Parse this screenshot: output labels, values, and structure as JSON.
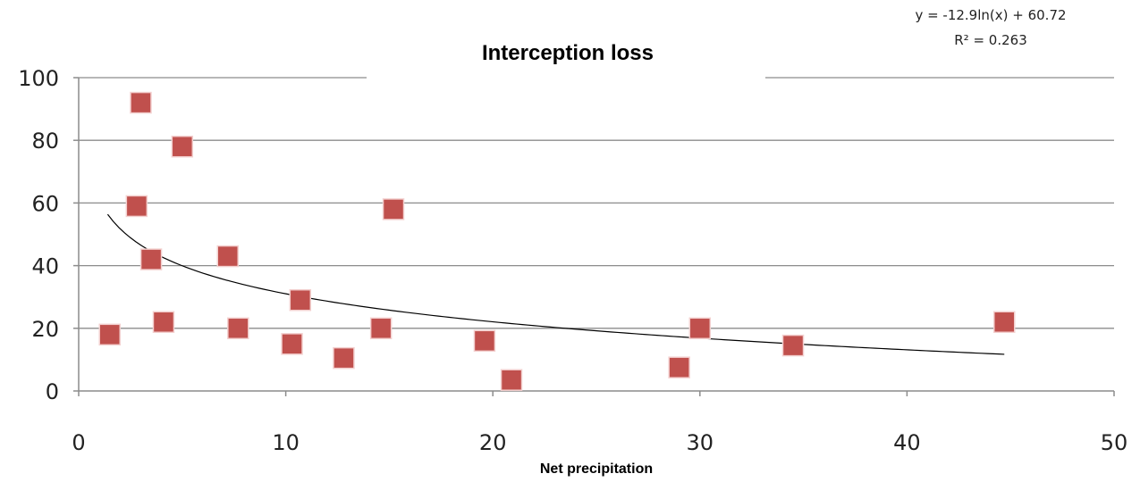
{
  "chart_data": {
    "type": "scatter",
    "title": "Interception loss",
    "xlabel": "Net precipitation",
    "ylabel": "",
    "xlim": [
      0,
      50
    ],
    "ylim": [
      0,
      100
    ],
    "x_ticks": [
      0,
      10,
      20,
      30,
      40,
      50
    ],
    "y_ticks": [
      0,
      20,
      40,
      60,
      80,
      100
    ],
    "grid": true,
    "colors": {
      "points": "#c0504d",
      "trendline": "#000000",
      "grid": "#8c8c8c"
    },
    "series": [
      {
        "points": [
          {
            "x": 1.5,
            "y": 18
          },
          {
            "x": 2.8,
            "y": 59
          },
          {
            "x": 3.0,
            "y": 92
          },
          {
            "x": 3.5,
            "y": 42
          },
          {
            "x": 4.1,
            "y": 22
          },
          {
            "x": 5.0,
            "y": 78
          },
          {
            "x": 7.2,
            "y": 43
          },
          {
            "x": 7.7,
            "y": 20
          },
          {
            "x": 10.3,
            "y": 15
          },
          {
            "x": 10.7,
            "y": 29
          },
          {
            "x": 12.8,
            "y": 10.5
          },
          {
            "x": 14.6,
            "y": 20
          },
          {
            "x": 15.2,
            "y": 58
          },
          {
            "x": 19.6,
            "y": 16
          },
          {
            "x": 20.9,
            "y": 3.5
          },
          {
            "x": 29.0,
            "y": 7.5
          },
          {
            "x": 30.0,
            "y": 20
          },
          {
            "x": 34.5,
            "y": 14.5
          },
          {
            "x": 44.7,
            "y": 22
          }
        ]
      }
    ],
    "trendline": {
      "type": "logarithmic",
      "a": -12.9,
      "b": 60.72,
      "x_range": [
        1.4,
        44.7
      ],
      "equation": "y = -12.9ln(x) + 60.72",
      "r_squared": "R² = 0.263"
    }
  }
}
